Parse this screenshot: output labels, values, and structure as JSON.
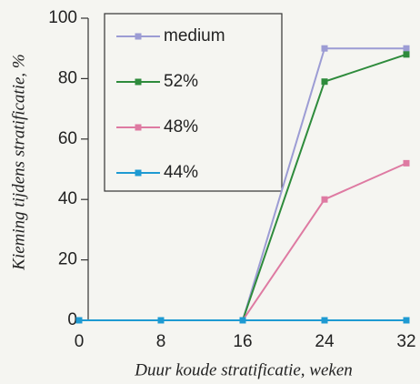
{
  "chart_data": {
    "type": "line",
    "x": [
      0,
      8,
      16,
      24,
      32
    ],
    "series": [
      {
        "name": "medium",
        "color": "#9c9cd4",
        "values": [
          0,
          0,
          0,
          90,
          90
        ]
      },
      {
        "name": "52%",
        "color": "#2e8b3c",
        "values": [
          0,
          0,
          0,
          79,
          88
        ]
      },
      {
        "name": "48%",
        "color": "#de7aa2",
        "values": [
          0,
          0,
          0,
          40,
          52
        ]
      },
      {
        "name": "44%",
        "color": "#1e9ad2",
        "values": [
          0,
          0,
          0,
          0,
          0
        ]
      }
    ],
    "xlabel": "Duur koude stratificatie, weken",
    "ylabel": "Kieming tijdens stratificatie, %",
    "xlim": [
      0,
      32
    ],
    "xticks": [
      0,
      8,
      16,
      24,
      32
    ],
    "ylim": [
      0,
      100
    ],
    "yticks": [
      0,
      20,
      40,
      60,
      80,
      100
    ],
    "legend": "upper left"
  }
}
